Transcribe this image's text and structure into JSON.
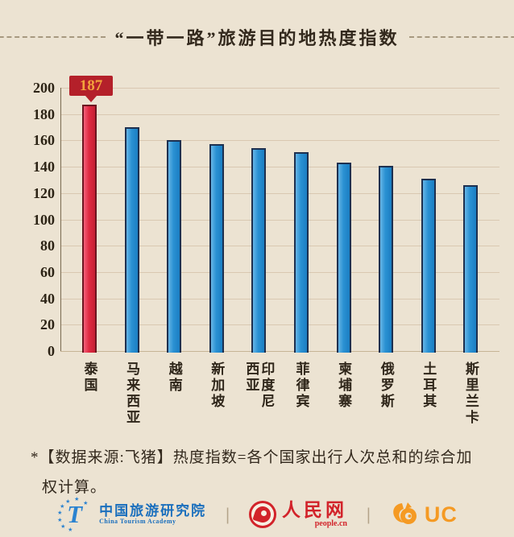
{
  "title": "“一带一路”旅游目的地热度指数",
  "chart_data": {
    "type": "bar",
    "title": "“一带一路”旅游目的地热度指数",
    "categories": [
      "泰国",
      "马来西亚",
      "越南",
      "新加坡",
      "印度尼西亚",
      "菲律宾",
      "柬埔寨",
      "俄罗斯",
      "土耳其",
      "斯里兰卡"
    ],
    "values": [
      187,
      170,
      160,
      157,
      154,
      151,
      143,
      141,
      131,
      126
    ],
    "annotation": {
      "index": 0,
      "text": "187"
    },
    "xlabel": "",
    "ylabel": "",
    "ylim": [
      0,
      200
    ],
    "ytick_step": 20,
    "grid": true,
    "legend": "none"
  },
  "axis": {
    "yticks": [
      200,
      180,
      160,
      140,
      120,
      100,
      80,
      60,
      40,
      20,
      0
    ]
  },
  "bar_labels": [
    "泰国",
    "马来西亚",
    "越南",
    "新加坡",
    "印度尼\n西亚",
    "菲律宾",
    "柬埔寨",
    "俄罗斯",
    "土耳其",
    "斯里兰卡"
  ],
  "footnote": {
    "line1": "*【数据来源:飞猪】热度指数=各个国家出行人次总和的综合加",
    "line2": "权计算。"
  },
  "footer": {
    "cta": {
      "logo_letter": "T",
      "name_cn": "中国旅游研究院",
      "name_en": "China Tourism Academy"
    },
    "separator": "|",
    "people": {
      "name_cn": "人民网",
      "name_en": "people.cn"
    },
    "uc": {
      "label": "UC"
    }
  },
  "colors": {
    "background": "#ece3d2",
    "title_text": "#33291d",
    "bar_blue": "#2a91d3",
    "bar_blue_outline": "#1d3050",
    "bar_red": "#e02a42",
    "bar_red_outline": "#6d1420",
    "badge_bg": "#b4202a",
    "badge_text": "#f3a33b",
    "grid": "#d9c8b1",
    "grid_zero": "#c6b496",
    "axis": "#7a6a50",
    "cta_blue": "#1a6fbd",
    "people_red": "#d2232a",
    "uc_orange": "#f59a23"
  }
}
